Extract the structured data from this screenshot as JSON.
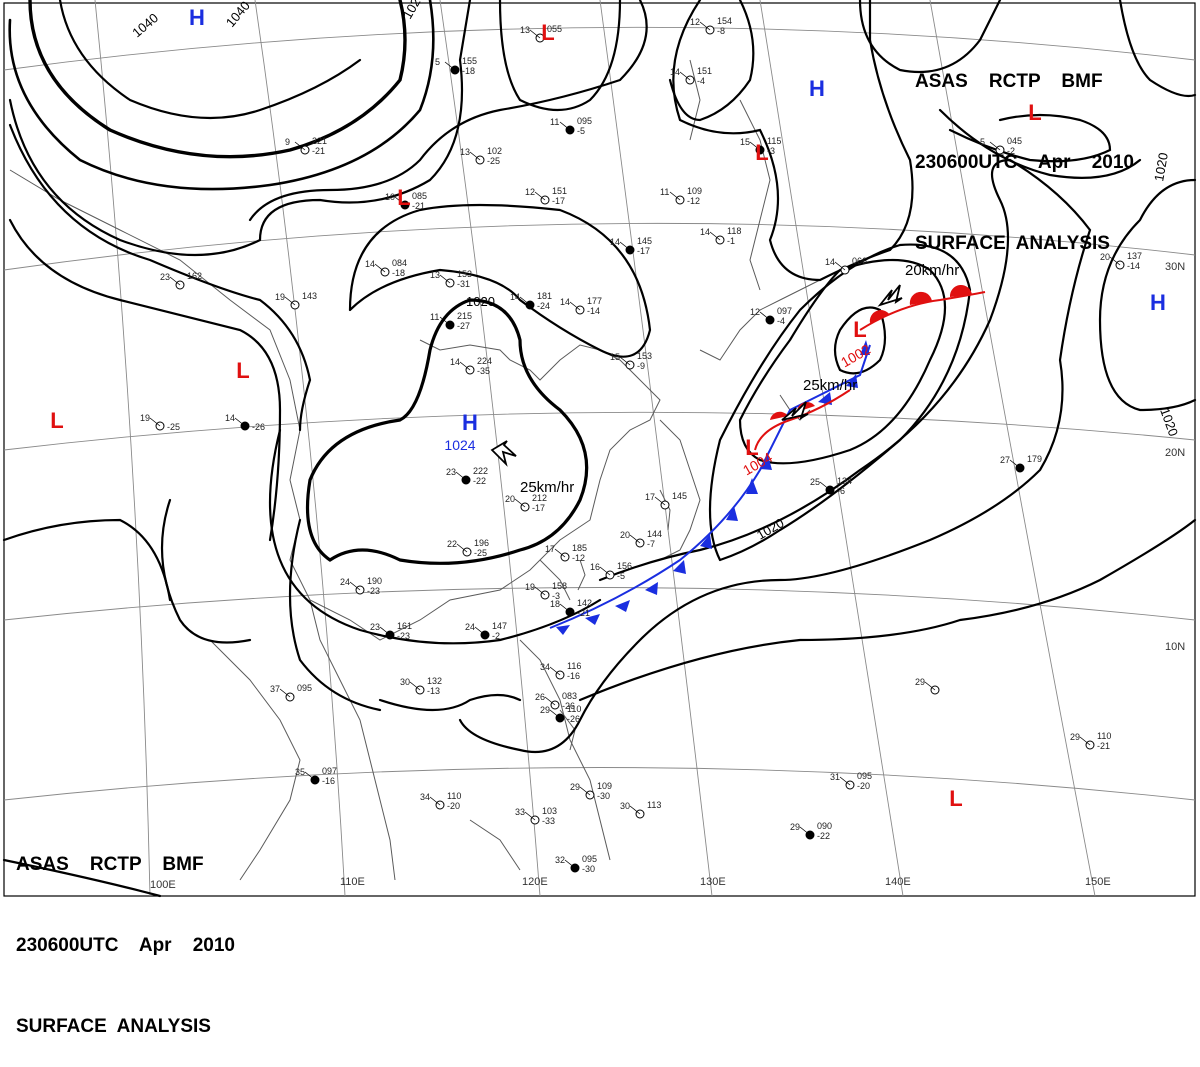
{
  "header": {
    "line1": "ASAS    RCTP    BMF",
    "line2": "230600UTC    Apr    2010",
    "line3": "SURFACE  ANALYSIS"
  },
  "pressure_centers": [
    {
      "type": "H",
      "value": "1024",
      "color": "#1a2ee0"
    },
    {
      "type": "H",
      "value": "",
      "color": "#1a2ee0"
    },
    {
      "type": "H",
      "value": "",
      "color": "#1a2ee0"
    },
    {
      "type": "H",
      "value": "",
      "color": "#1a2ee0"
    },
    {
      "type": "L",
      "value": "1002",
      "color": "#e01010"
    },
    {
      "type": "L",
      "value": "1004",
      "color": "#e01010"
    },
    {
      "type": "L",
      "value": "",
      "color": "#e01010"
    },
    {
      "type": "L",
      "value": "",
      "color": "#e01010"
    },
    {
      "type": "L",
      "value": "",
      "color": "#e01010"
    },
    {
      "type": "L",
      "value": "",
      "color": "#e01010"
    },
    {
      "type": "L",
      "value": "",
      "color": "#e01010"
    },
    {
      "type": "L",
      "value": "",
      "color": "#e01010"
    },
    {
      "type": "L",
      "value": "",
      "color": "#e01010"
    }
  ],
  "isobar_labels": [
    "1040",
    "1040",
    "1020",
    "1020",
    "1020",
    "1020",
    "102"
  ],
  "motion_labels": [
    "25km/hr",
    "25km/hr",
    "20km/hr"
  ],
  "longitude_labels": [
    "110E",
    "120E",
    "130E",
    "140E",
    "150E",
    "100E"
  ],
  "latitude_labels": [
    "30N",
    "20N",
    "10N"
  ],
  "stations": [
    {
      "temp": "24",
      "pres": "147",
      "dp": "-2"
    },
    {
      "temp": "20",
      "pres": "212",
      "dp": "-17"
    },
    {
      "temp": "22",
      "pres": "196",
      "dp": "-25"
    },
    {
      "temp": "23",
      "pres": "222",
      "dp": "-22"
    },
    {
      "temp": "17",
      "pres": "185",
      "dp": "-12"
    },
    {
      "temp": "20",
      "pres": "144",
      "dp": "-7"
    },
    {
      "temp": "14",
      "pres": "181",
      "dp": "-24"
    },
    {
      "temp": "14",
      "pres": "177",
      "dp": "-14"
    },
    {
      "temp": "14",
      "pres": "224",
      "dp": "-35"
    },
    {
      "temp": "11",
      "pres": "215",
      "dp": "-27"
    },
    {
      "temp": "13",
      "pres": "153",
      "dp": "-31"
    },
    {
      "temp": "14",
      "pres": "084",
      "dp": "-18"
    },
    {
      "temp": "10",
      "pres": "085",
      "dp": "-21"
    },
    {
      "temp": "13",
      "pres": "102",
      "dp": "-25"
    },
    {
      "temp": "12",
      "pres": "151",
      "dp": "-17"
    },
    {
      "temp": "11",
      "pres": "095",
      "dp": "-5"
    },
    {
      "temp": "13",
      "pres": "055",
      "dp": ""
    },
    {
      "temp": "11",
      "pres": "109",
      "dp": "-12"
    },
    {
      "temp": "14",
      "pres": "145",
      "dp": "-17"
    },
    {
      "temp": "19",
      "pres": "143",
      "dp": ""
    },
    {
      "temp": "23",
      "pres": "162",
      "dp": ""
    },
    {
      "temp": "14",
      "pres": "",
      "dp": "-26"
    },
    {
      "temp": "19",
      "pres": "",
      "dp": "-25"
    },
    {
      "temp": "24",
      "pres": "190",
      "dp": "-23"
    },
    {
      "temp": "23",
      "pres": "161",
      "dp": "-23"
    },
    {
      "temp": "30",
      "pres": "132",
      "dp": "-13"
    },
    {
      "temp": "37",
      "pres": "095",
      "dp": ""
    },
    {
      "temp": "35",
      "pres": "097",
      "dp": "-16"
    },
    {
      "temp": "34",
      "pres": "110",
      "dp": "-20"
    },
    {
      "temp": "33",
      "pres": "103",
      "dp": "-33"
    },
    {
      "temp": "32",
      "pres": "095",
      "dp": "-30"
    },
    {
      "temp": "34",
      "pres": "116",
      "dp": "-16"
    },
    {
      "temp": "26",
      "pres": "083",
      "dp": "-26"
    },
    {
      "temp": "29",
      "pres": "110",
      "dp": "-26"
    },
    {
      "temp": "29",
      "pres": "109",
      "dp": "-30"
    },
    {
      "temp": "30",
      "pres": "113",
      "dp": ""
    },
    {
      "temp": "29",
      "pres": "090",
      "dp": "-22"
    },
    {
      "temp": "31",
      "pres": "095",
      "dp": "-20"
    },
    {
      "temp": "29",
      "pres": "110",
      "dp": "-21"
    },
    {
      "temp": "27",
      "pres": "179",
      "dp": ""
    },
    {
      "temp": "29",
      "pres": "",
      "dp": ""
    },
    {
      "temp": "20",
      "pres": "137",
      "dp": "-14"
    },
    {
      "temp": "25",
      "pres": "134",
      "dp": "-6"
    },
    {
      "temp": "17",
      "pres": "145",
      "dp": ""
    },
    {
      "temp": "19",
      "pres": "158",
      "dp": "-3"
    },
    {
      "temp": "18",
      "pres": "142",
      "dp": "-21"
    },
    {
      "temp": "16",
      "pres": "156",
      "dp": "-5"
    },
    {
      "temp": "15",
      "pres": "153",
      "dp": "-9"
    },
    {
      "temp": "12",
      "pres": "097",
      "dp": "-4"
    },
    {
      "temp": "14",
      "pres": "118",
      "dp": "-1"
    },
    {
      "temp": "14",
      "pres": "151",
      "dp": "-4"
    },
    {
      "temp": "15",
      "pres": "115",
      "dp": "-3"
    },
    {
      "temp": "12",
      "pres": "154",
      "dp": "-8"
    },
    {
      "temp": "9",
      "pres": "221",
      "dp": "-21"
    },
    {
      "temp": "5",
      "pres": "155",
      "dp": "-18"
    },
    {
      "temp": "14",
      "pres": "066",
      "dp": ""
    },
    {
      "temp": "5",
      "pres": "045",
      "dp": "-2"
    }
  ],
  "colors": {
    "isobar": "#000000",
    "grid": "#8a8a8a",
    "coast": "#5a5a5a",
    "high": "#1a2ee0",
    "low": "#e01010",
    "cold_front": "#1a2ee0",
    "warm_front": "#e01010"
  }
}
